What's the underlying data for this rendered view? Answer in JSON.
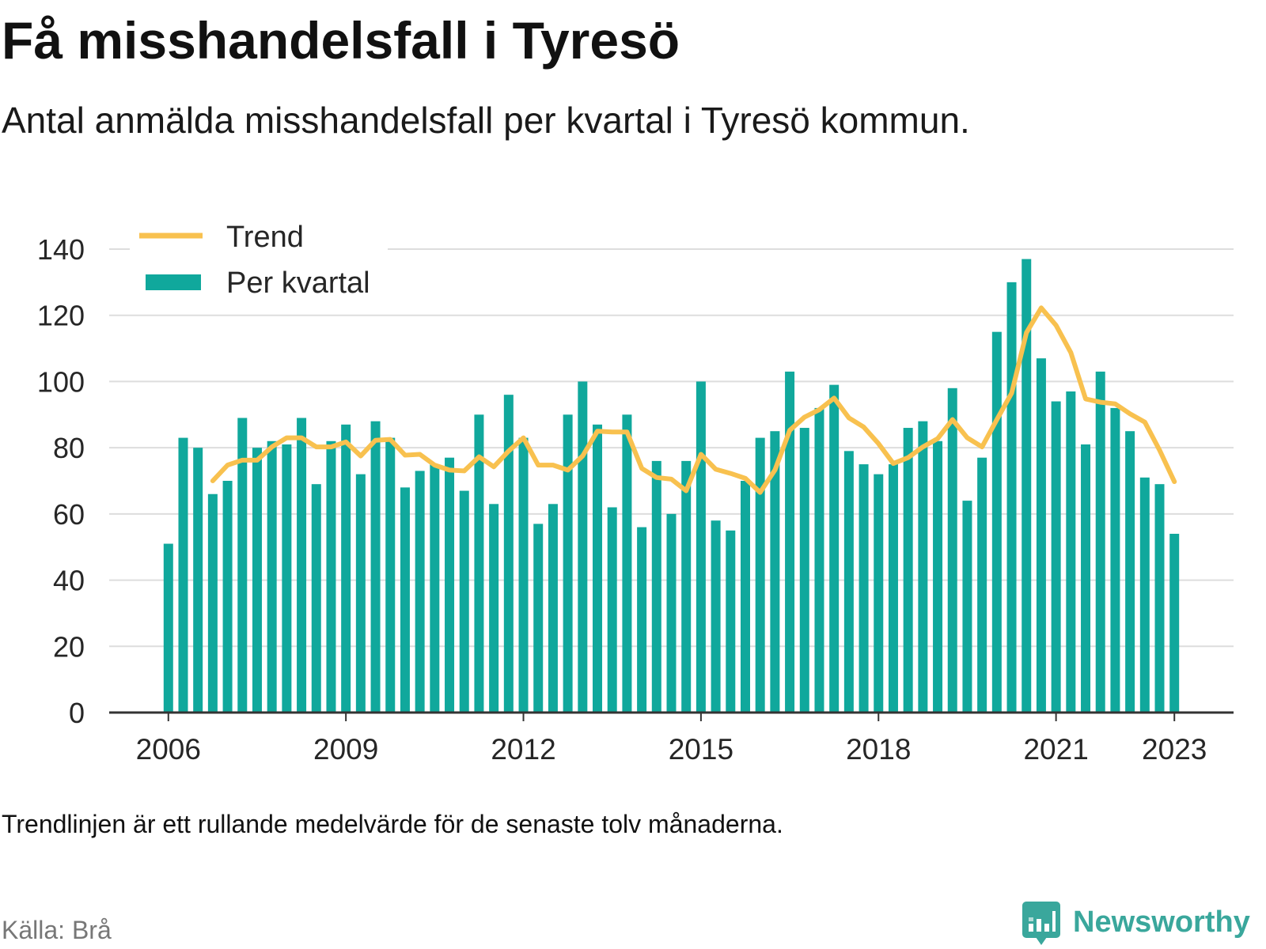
{
  "title": "Få misshandelsfall i Tyresö",
  "subtitle": "Antal anmälda misshandelsfall per kvartal i Tyresö kommun.",
  "note": "Trendlinjen är ett rullande medelvärde för de senaste tolv månaderna.",
  "source": "Källa: Brå",
  "logo": {
    "text": "Newsworthy",
    "icon": "newsworthy-logo-icon"
  },
  "colors": {
    "bars": "#10a89c",
    "trend": "#f8c14f",
    "grid": "#dddddd",
    "axis": "#333333",
    "source": "#777777",
    "logo": "#3aa79c"
  },
  "chart_data": {
    "type": "bar",
    "title": "Få misshandelsfall i Tyresö",
    "subtitle": "Antal anmälda misshandelsfall per kvartal i Tyresö kommun.",
    "xlabel": "",
    "ylabel": "",
    "x": [
      "2006-Q1",
      "2006-Q2",
      "2006-Q3",
      "2006-Q4",
      "2007-Q1",
      "2007-Q2",
      "2007-Q3",
      "2007-Q4",
      "2008-Q1",
      "2008-Q2",
      "2008-Q3",
      "2008-Q4",
      "2009-Q1",
      "2009-Q2",
      "2009-Q3",
      "2009-Q4",
      "2010-Q1",
      "2010-Q2",
      "2010-Q3",
      "2010-Q4",
      "2011-Q1",
      "2011-Q2",
      "2011-Q3",
      "2011-Q4",
      "2012-Q1",
      "2012-Q2",
      "2012-Q3",
      "2012-Q4",
      "2013-Q1",
      "2013-Q2",
      "2013-Q3",
      "2013-Q4",
      "2014-Q1",
      "2014-Q2",
      "2014-Q3",
      "2014-Q4",
      "2015-Q1",
      "2015-Q2",
      "2015-Q3",
      "2015-Q4",
      "2016-Q1",
      "2016-Q2",
      "2016-Q3",
      "2016-Q4",
      "2017-Q1",
      "2017-Q2",
      "2017-Q3",
      "2017-Q4",
      "2018-Q1",
      "2018-Q2",
      "2018-Q3",
      "2018-Q4",
      "2019-Q1",
      "2019-Q2",
      "2019-Q3",
      "2019-Q4",
      "2020-Q1",
      "2020-Q2",
      "2020-Q3",
      "2020-Q4",
      "2021-Q1",
      "2021-Q2",
      "2021-Q3",
      "2021-Q4",
      "2022-Q1",
      "2022-Q2",
      "2022-Q3",
      "2022-Q4",
      "2023-Q1"
    ],
    "series": [
      {
        "name": "Per kvartal",
        "type": "bar",
        "values": [
          51,
          83,
          80,
          66,
          70,
          89,
          80,
          82,
          81,
          89,
          69,
          82,
          87,
          72,
          88,
          83,
          68,
          73,
          75,
          77,
          67,
          90,
          63,
          96,
          83,
          57,
          63,
          90,
          100,
          87,
          62,
          90,
          56,
          76,
          60,
          76,
          100,
          58,
          55,
          70,
          83,
          85,
          103,
          86,
          92,
          99,
          79,
          75,
          72,
          75,
          86,
          88,
          82,
          98,
          64,
          77,
          115,
          130,
          137,
          107,
          94,
          97,
          81,
          103,
          92,
          85,
          71,
          69,
          54
        ]
      },
      {
        "name": "Trend",
        "type": "line",
        "values": [
          null,
          null,
          null,
          70,
          74.75,
          76.25,
          76.25,
          80.25,
          83,
          83,
          80.25,
          80.25,
          81.75,
          77.5,
          82.25,
          82.5,
          77.75,
          78,
          74.75,
          73.25,
          73,
          77.25,
          74.25,
          79,
          83,
          74.75,
          74.75,
          73.25,
          77.5,
          85,
          84.75,
          84.75,
          73.75,
          71,
          70.5,
          67,
          78,
          73.5,
          72.25,
          70.75,
          66.5,
          73.25,
          85.25,
          89.25,
          91.5,
          95,
          89,
          86.25,
          81.25,
          75.25,
          77,
          80.25,
          82.75,
          88.5,
          83,
          80.25,
          88.5,
          96.5,
          114.75,
          122.25,
          117,
          108.75,
          94.75,
          93.75,
          93.25,
          90.25,
          87.75,
          79.25,
          69.75
        ]
      }
    ],
    "xticks": [
      "2006",
      "2009",
      "2012",
      "2015",
      "2018",
      "2021",
      "2023"
    ],
    "yticks": [
      "0",
      "20",
      "40",
      "60",
      "80",
      "100",
      "120",
      "140"
    ],
    "xlim": [
      2005,
      2024
    ],
    "ylim": [
      0,
      140
    ],
    "grid": true,
    "legend": "top-left"
  }
}
